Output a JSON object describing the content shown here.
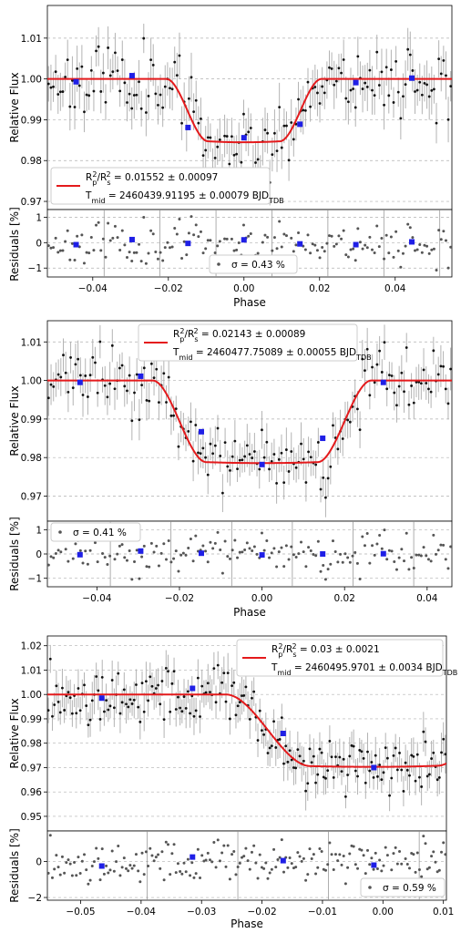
{
  "chart_data": [
    {
      "type": "line",
      "model_color": "#e41a1c",
      "binned_color": "#1f1fe6",
      "point_color": "#111111",
      "errorbar_color": "#b3b3b3",
      "xlabel": "Phase",
      "ylabel_top": "Relative Flux",
      "ylabel_bottom": "Residuals [%]",
      "xlim": [
        -0.052,
        0.055
      ],
      "ylim_flux": [
        0.968,
        1.018
      ],
      "ylim_res": [
        -1.35,
        1.3
      ],
      "x_ticks": [
        -0.04,
        -0.02,
        0.0,
        0.02,
        0.04
      ],
      "x_tick_labels": [
        "−0.04",
        "−0.02",
        "0.00",
        "0.02",
        "0.04"
      ],
      "flux_ticks": [
        0.97,
        0.98,
        0.99,
        1.0,
        1.01
      ],
      "flux_tick_labels": [
        "0.97",
        "0.98",
        "0.99",
        "1.00",
        "1.01"
      ],
      "res_ticks": [
        -1,
        0,
        1
      ],
      "res_tick_labels": [
        "−1",
        "0",
        "1"
      ],
      "legend": {
        "position": "lower-left",
        "line1": "R_p^2/R_s^2 = 0.01552 ± 0.00097",
        "line2": "T_mid = 2460439.91195 ± 0.00079 BJD_TDB"
      },
      "residual_legend": {
        "position": "lower-center",
        "text": "σ = 0.43 %"
      },
      "model": {
        "depth": 0.01552,
        "t1": 0.0205,
        "t2": 0.0095,
        "curvature": 0.0005,
        "slope": 0
      },
      "binned": [
        {
          "x": -0.0444,
          "flux": 0.9993,
          "res": -0.08
        },
        {
          "x": -0.0296,
          "flux": 1.0008,
          "res": 0.12
        },
        {
          "x": -0.0148,
          "flux": 0.9881,
          "res": -0.03
        },
        {
          "x": 0.0,
          "flux": 0.9856,
          "res": 0.11
        },
        {
          "x": 0.0148,
          "flux": 0.9889,
          "res": -0.05
        },
        {
          "x": 0.0296,
          "flux": 0.9991,
          "res": -0.08
        },
        {
          "x": 0.0444,
          "flux": 1.0002,
          "res": 0.03
        }
      ],
      "noise": {
        "n": 170,
        "sigma": 0.0043,
        "seed": 11
      }
    },
    {
      "type": "line",
      "model_color": "#e41a1c",
      "binned_color": "#1f1fe6",
      "point_color": "#111111",
      "errorbar_color": "#b3b3b3",
      "xlabel": "Phase",
      "ylabel_top": "Relative Flux",
      "ylabel_bottom": "Residuals [%]",
      "xlim": [
        -0.052,
        0.046
      ],
      "ylim_flux": [
        0.9635,
        1.0155
      ],
      "ylim_res": [
        -1.35,
        1.35
      ],
      "x_ticks": [
        -0.04,
        -0.02,
        0.0,
        0.02,
        0.04
      ],
      "x_tick_labels": [
        "−0.04",
        "−0.02",
        "0.00",
        "0.02",
        "0.04"
      ],
      "flux_ticks": [
        0.97,
        0.98,
        0.99,
        1.0,
        1.01
      ],
      "flux_tick_labels": [
        "0.97",
        "0.98",
        "0.99",
        "1.00",
        "1.01"
      ],
      "res_ticks": [
        -1,
        0,
        1
      ],
      "res_tick_labels": [
        "−1",
        "0",
        "1"
      ],
      "legend": {
        "position": "upper-center",
        "line1": "R_p^2/R_s^2 = 0.02143 ± 0.00089",
        "line2": "T_mid = 2460477.75089 ± 0.00055 BJD_TDB"
      },
      "residual_legend": {
        "position": "upper-left",
        "text": "σ = 0.41 %"
      },
      "model": {
        "depth": 0.02143,
        "t1": 0.0265,
        "t2": 0.0135,
        "curvature": 0.0005,
        "slope": 0
      },
      "binned": [
        {
          "x": -0.0441,
          "flux": 0.9995,
          "res": -0.03
        },
        {
          "x": -0.0294,
          "flux": 1.0011,
          "res": 0.12
        },
        {
          "x": -0.0147,
          "flux": 0.9867,
          "res": 0.03
        },
        {
          "x": 0.0,
          "flux": 0.9782,
          "res": -0.04
        },
        {
          "x": 0.0147,
          "flux": 0.985,
          "res": 0.0
        },
        {
          "x": 0.0294,
          "flux": 0.9995,
          "res": 0.01
        }
      ],
      "noise": {
        "n": 165,
        "sigma": 0.0041,
        "seed": 23
      }
    },
    {
      "type": "line",
      "model_color": "#e41a1c",
      "binned_color": "#1f1fe6",
      "point_color": "#111111",
      "errorbar_color": "#b3b3b3",
      "xlabel": "Phase",
      "ylabel_top": "Relative Flux",
      "ylabel_bottom": "Residuals [%]",
      "xlim": [
        -0.0555,
        0.0105
      ],
      "ylim_flux": [
        0.944,
        1.024
      ],
      "ylim_res": [
        -2.15,
        1.7
      ],
      "x_ticks": [
        -0.05,
        -0.04,
        -0.03,
        -0.02,
        -0.01,
        0.0,
        0.01
      ],
      "x_tick_labels": [
        "−0.05",
        "−0.04",
        "−0.03",
        "−0.02",
        "−0.01",
        "0.00",
        "0.01"
      ],
      "flux_ticks": [
        0.95,
        0.96,
        0.97,
        0.98,
        0.99,
        1.0,
        1.01,
        1.02
      ],
      "flux_tick_labels": [
        "0.95",
        "0.96",
        "0.97",
        "0.98",
        "0.99",
        "1.00",
        "1.01",
        "1.02"
      ],
      "res_ticks": [
        -2,
        0
      ],
      "res_tick_labels": [
        "−2",
        "0"
      ],
      "legend": {
        "position": "upper-right",
        "line1": "R_p^2/R_s^2 = 0.03 ± 0.0021",
        "line2": "T_mid = 2460495.9701 ± 0.0034 BJD_TDB"
      },
      "residual_legend": {
        "position": "lower-right",
        "text": "σ = 0.59 %"
      },
      "model": {
        "depth": 0.0297,
        "t1": 0.0245,
        "t2": 0.0105,
        "curvature": 0.0006,
        "slope": 0.06,
        "center": -0.0015
      },
      "binned": [
        {
          "x": -0.0465,
          "flux": 0.9985,
          "res": -0.25
        },
        {
          "x": -0.0315,
          "flux": 1.0025,
          "res": 0.25
        },
        {
          "x": -0.0165,
          "flux": 0.984,
          "res": 0.05
        },
        {
          "x": -0.0015,
          "flux": 0.97,
          "res": -0.2
        }
      ],
      "noise": {
        "n": 200,
        "sigma": 0.0059,
        "seed": 37
      }
    }
  ]
}
